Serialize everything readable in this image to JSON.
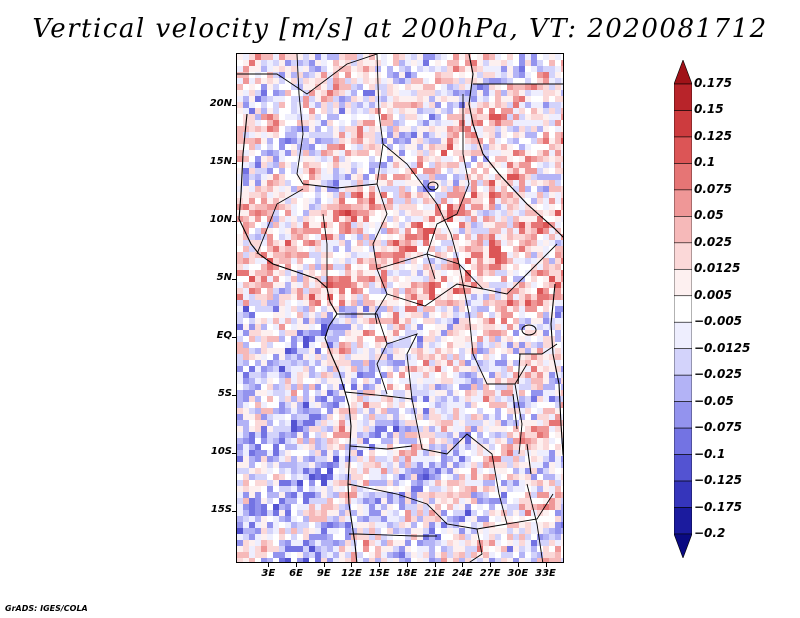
{
  "title": "Vertical velocity [m/s] at 200hPa, VT: 2020081712",
  "credit": "GrADS: IGES/COLA",
  "map": {
    "lat_range": [
      -19.5,
      24.5
    ],
    "lon_range": [
      -0.5,
      35
    ],
    "lat_ticks": [
      {
        "value": 20,
        "label": "20N"
      },
      {
        "value": 15,
        "label": "15N"
      },
      {
        "value": 10,
        "label": "10N"
      },
      {
        "value": 5,
        "label": "5N"
      },
      {
        "value": 0,
        "label": "EQ"
      },
      {
        "value": -5,
        "label": "5S"
      },
      {
        "value": -10,
        "label": "10S"
      },
      {
        "value": -15,
        "label": "15S"
      }
    ],
    "lon_ticks": [
      {
        "value": 3,
        "label": "3E"
      },
      {
        "value": 6,
        "label": "6E"
      },
      {
        "value": 9,
        "label": "9E"
      },
      {
        "value": 12,
        "label": "12E"
      },
      {
        "value": 15,
        "label": "15E"
      },
      {
        "value": 18,
        "label": "18E"
      },
      {
        "value": 21,
        "label": "21E"
      },
      {
        "value": 24,
        "label": "24E"
      },
      {
        "value": 27,
        "label": "27E"
      },
      {
        "value": 30,
        "label": "30E"
      },
      {
        "value": 33,
        "label": "33E"
      }
    ]
  },
  "colorbar": {
    "labels": [
      "0.175",
      "0.15",
      "0.125",
      "0.1",
      "0.075",
      "0.05",
      "0.025",
      "0.0125",
      "0.005",
      "−0.005",
      "−0.0125",
      "−0.025",
      "−0.05",
      "−0.075",
      "−0.1",
      "−0.125",
      "−0.175",
      "−0.2"
    ],
    "colors": [
      "#a01218",
      "#b8242a",
      "#cd3b3e",
      "#dc5556",
      "#e67575",
      "#ef9797",
      "#f6b9b9",
      "#fbd8d8",
      "#fdf0f0",
      "#ffffff",
      "#eeeefe",
      "#d3d3fb",
      "#b3b3f6",
      "#9393ee",
      "#7373e3",
      "#5353d2",
      "#3535bb",
      "#1b1b9e",
      "#0a0a82"
    ]
  }
}
